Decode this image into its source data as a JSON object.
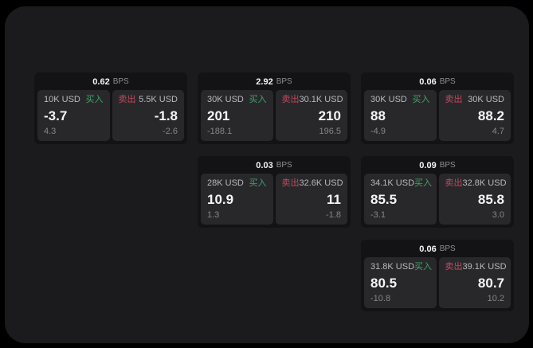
{
  "colors": {
    "buy_green": "#3fa46a",
    "sell_red": "#c2495c",
    "surface_bg": "#1b1b1d",
    "card_bg": "#131316",
    "tile_bg": "#28282b"
  },
  "bps_unit": "BPS",
  "cards": [
    {
      "bps_value": "0.62",
      "buy": {
        "size": "10K USD",
        "side_label": "买入",
        "value": "-3.7",
        "change": "4.3"
      },
      "sell": {
        "side_label": "卖出",
        "size": "5.5K USD",
        "value": "-1.8",
        "change": "-2.6"
      }
    },
    {
      "bps_value": "2.92",
      "buy": {
        "size": "30K USD",
        "side_label": "买入",
        "value": "201",
        "change": "-188.1"
      },
      "sell": {
        "side_label": "卖出",
        "size": "30.1K USD",
        "value": "210",
        "change": "196.5"
      }
    },
    {
      "bps_value": "0.06",
      "buy": {
        "size": "30K USD",
        "side_label": "买入",
        "value": "88",
        "change": "-4.9"
      },
      "sell": {
        "side_label": "卖出",
        "size": "30K USD",
        "value": "88.2",
        "change": "4.7"
      }
    },
    {
      "bps_value": "0.03",
      "buy": {
        "size": "28K USD",
        "side_label": "买入",
        "value": "10.9",
        "change": "1.3"
      },
      "sell": {
        "side_label": "卖出",
        "size": "32.6K USD",
        "value": "11",
        "change": "-1.8"
      }
    },
    {
      "bps_value": "0.09",
      "buy": {
        "size": "34.1K USD",
        "side_label": "买入",
        "value": "85.5",
        "change": "-3.1"
      },
      "sell": {
        "side_label": "卖出",
        "size": "32.8K USD",
        "value": "85.8",
        "change": "3.0"
      }
    },
    {
      "bps_value": "0.06",
      "buy": {
        "size": "31.8K USD",
        "side_label": "买入",
        "value": "80.5",
        "change": "-10.8"
      },
      "sell": {
        "side_label": "卖出",
        "size": "39.1K USD",
        "value": "80.7",
        "change": "10.2"
      }
    }
  ]
}
